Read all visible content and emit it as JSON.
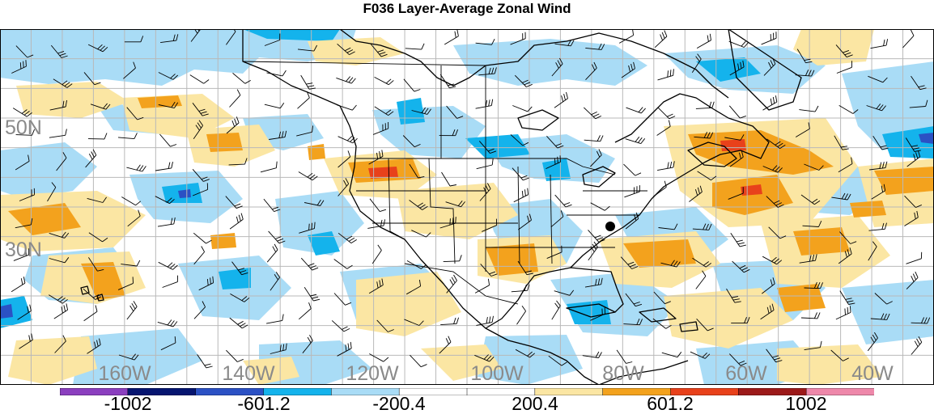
{
  "title": "F036 Layer-Average Zonal Wind",
  "map": {
    "projection": "lat-lon",
    "lon_range": [
      -180,
      -30
    ],
    "lat_range": [
      5,
      65
    ],
    "lat_labels": [
      "50N",
      "30N"
    ],
    "lon_labels": [
      "160W",
      "140W",
      "120W",
      "100W",
      "80W",
      "60W",
      "40W"
    ],
    "label_color": "#8a8a8a",
    "grid_color": "#b9b9b9"
  },
  "colorbar": {
    "colors": [
      "#8b3fbf",
      "#061570",
      "#2b51c4",
      "#14b3ec",
      "#a9dcf6",
      "#ffffff",
      "#ffffff",
      "#fbe6a3",
      "#f3a21d",
      "#e8411b",
      "#9c1a1a",
      "#ee88aa"
    ],
    "labels": [
      "-1002",
      "-601.2",
      "-200.4",
      "200.4",
      "601.2",
      "1002"
    ]
  },
  "colors": {
    "light_blue": "#a9dcf6",
    "mid_blue": "#14b3ec",
    "deep_blue": "#2b51c4",
    "light_yellow": "#fbe6a3",
    "orange": "#f3a21d",
    "red": "#e8411b"
  }
}
